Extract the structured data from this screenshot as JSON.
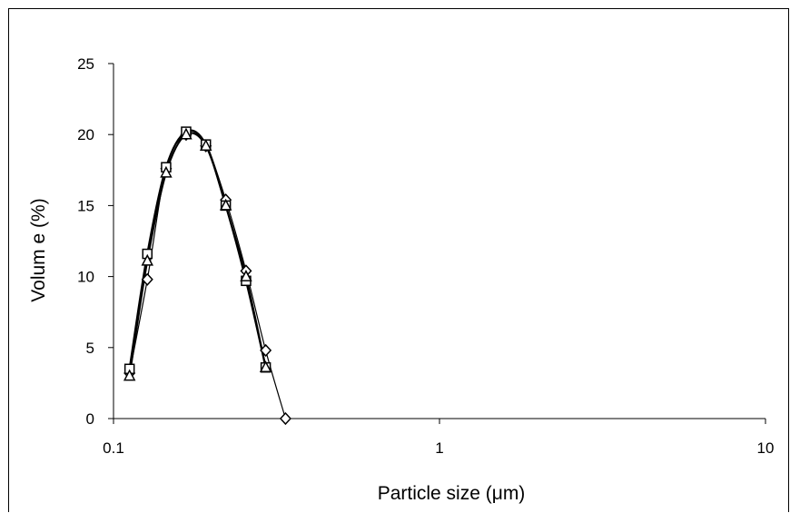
{
  "chart_data": {
    "type": "scatter",
    "title": "",
    "xlabel": "Particle size (μm)",
    "ylabel": "Volum e (%)",
    "xscale": "log",
    "xlim": [
      0.1,
      10
    ],
    "ylim": [
      0,
      25
    ],
    "xticks": [
      0.1,
      1,
      10
    ],
    "xtick_labels": [
      "0.1",
      "1",
      "10"
    ],
    "yticks": [
      0,
      5,
      10,
      15,
      20,
      25
    ],
    "ytick_labels": [
      "0",
      "5",
      "10",
      "15",
      "20",
      "25"
    ],
    "grid": false,
    "legend": "none",
    "series": [
      {
        "marker": "diamond",
        "color": "#000000",
        "x": [
          0.112,
          0.127,
          0.145,
          0.167,
          0.192,
          0.221,
          0.255,
          0.293,
          0.337
        ],
        "y": [
          3.2,
          9.8,
          17.6,
          20.0,
          19.2,
          15.4,
          10.4,
          4.8,
          0.0
        ]
      },
      {
        "marker": "square",
        "color": "#000000",
        "x": [
          0.112,
          0.127,
          0.145,
          0.167,
          0.192,
          0.221,
          0.255,
          0.293
        ],
        "y": [
          3.5,
          11.6,
          17.7,
          20.2,
          19.3,
          15.0,
          9.7,
          3.6
        ]
      },
      {
        "marker": "triangle",
        "color": "#000000",
        "x": [
          0.112,
          0.127,
          0.145,
          0.167,
          0.192,
          0.221,
          0.255,
          0.293
        ],
        "y": [
          3.0,
          11.1,
          17.3,
          20.0,
          19.2,
          15.0,
          10.0,
          3.6
        ]
      }
    ]
  }
}
